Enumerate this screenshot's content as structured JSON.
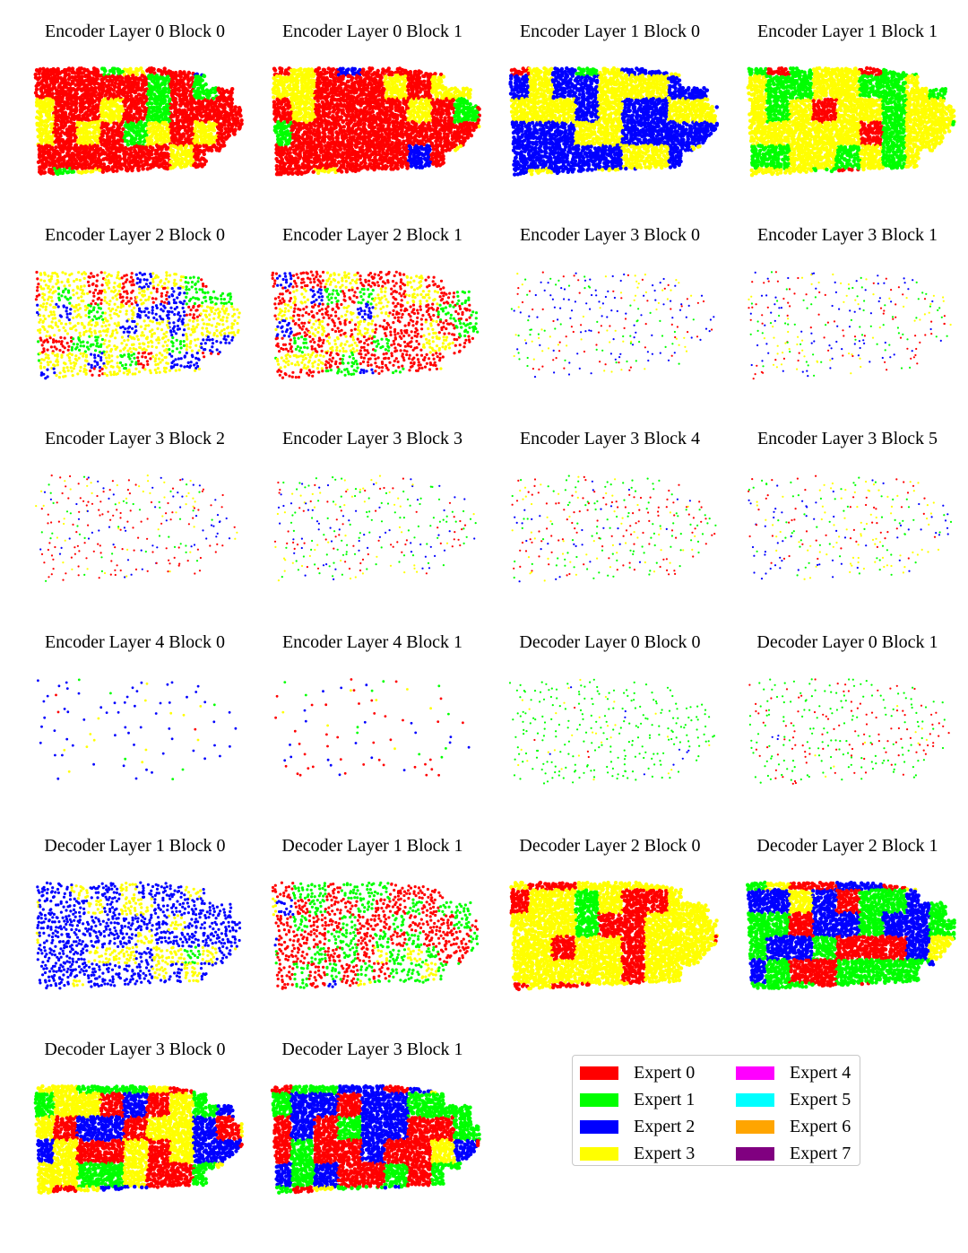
{
  "chart_data": {
    "type": "scatter",
    "description_source": "small-multiples of point clouds colored by expert assignment",
    "legend": {
      "placement": "bottom-right",
      "entries": [
        {
          "label": "Expert 0",
          "color": "#ff0000"
        },
        {
          "label": "Expert 1",
          "color": "#00ff00"
        },
        {
          "label": "Expert 2",
          "color": "#0000ff"
        },
        {
          "label": "Expert 3",
          "color": "#ffff00"
        },
        {
          "label": "Expert 4",
          "color": "#ff00ff"
        },
        {
          "label": "Expert 5",
          "color": "#00ffff"
        },
        {
          "label": "Expert 6",
          "color": "#ffa500"
        },
        {
          "label": "Expert 7",
          "color": "#800080"
        }
      ]
    },
    "panels": [
      {
        "title": "Encoder Layer 0 Block 0",
        "density": "dense",
        "mix": [
          0.62,
          0.08,
          0.05,
          0.25
        ]
      },
      {
        "title": "Encoder Layer 0 Block 1",
        "density": "dense",
        "mix": [
          0.72,
          0.02,
          0.03,
          0.23
        ]
      },
      {
        "title": "Encoder Layer 1 Block 0",
        "density": "dense",
        "mix": [
          0.04,
          0.08,
          0.6,
          0.28
        ]
      },
      {
        "title": "Encoder Layer 1 Block 1",
        "density": "dense",
        "mix": [
          0.03,
          0.42,
          0.05,
          0.5
        ]
      },
      {
        "title": "Encoder Layer 2 Block 0",
        "density": "medium",
        "mix": [
          0.15,
          0.12,
          0.18,
          0.55
        ]
      },
      {
        "title": "Encoder Layer 2 Block 1",
        "density": "medium",
        "mix": [
          0.48,
          0.22,
          0.08,
          0.22
        ]
      },
      {
        "title": "Encoder Layer 3 Block 0",
        "density": "sparse",
        "mix": [
          0.25,
          0.15,
          0.35,
          0.25
        ]
      },
      {
        "title": "Encoder Layer 3 Block 1",
        "density": "sparse",
        "mix": [
          0.3,
          0.18,
          0.34,
          0.18
        ]
      },
      {
        "title": "Encoder Layer 3 Block 2",
        "density": "sparse",
        "mix": [
          0.42,
          0.12,
          0.26,
          0.2
        ]
      },
      {
        "title": "Encoder Layer 3 Block 3",
        "density": "sparse",
        "mix": [
          0.22,
          0.38,
          0.22,
          0.18
        ]
      },
      {
        "title": "Encoder Layer 3 Block 4",
        "density": "sparse",
        "mix": [
          0.34,
          0.32,
          0.12,
          0.22
        ]
      },
      {
        "title": "Encoder Layer 3 Block 5",
        "density": "sparse",
        "mix": [
          0.2,
          0.34,
          0.18,
          0.28
        ]
      },
      {
        "title": "Encoder Layer 4 Block 0",
        "density": "verysparse",
        "mix": [
          0.06,
          0.12,
          0.72,
          0.1
        ]
      },
      {
        "title": "Encoder Layer 4 Block 1",
        "density": "verysparse",
        "mix": [
          0.42,
          0.16,
          0.3,
          0.12
        ]
      },
      {
        "title": "Decoder Layer 0 Block 0",
        "density": "sparse",
        "mix": [
          0.02,
          0.86,
          0.02,
          0.1
        ]
      },
      {
        "title": "Decoder Layer 0 Block 1",
        "density": "sparse",
        "mix": [
          0.3,
          0.66,
          0.01,
          0.03
        ]
      },
      {
        "title": "Decoder Layer 1 Block 0",
        "density": "medium",
        "mix": [
          0.01,
          0.01,
          0.76,
          0.22
        ]
      },
      {
        "title": "Decoder Layer 1 Block 1",
        "density": "medium",
        "mix": [
          0.52,
          0.4,
          0.02,
          0.06
        ]
      },
      {
        "title": "Decoder Layer 2 Block 0",
        "density": "dense",
        "mix": [
          0.48,
          0.04,
          0.02,
          0.46
        ]
      },
      {
        "title": "Decoder Layer 2 Block 1",
        "density": "dense",
        "mix": [
          0.24,
          0.36,
          0.3,
          0.1
        ]
      },
      {
        "title": "Decoder Layer 3 Block 0",
        "density": "dense",
        "mix": [
          0.34,
          0.2,
          0.12,
          0.34
        ]
      },
      {
        "title": "Decoder Layer 3 Block 1",
        "density": "dense",
        "mix": [
          0.28,
          0.34,
          0.3,
          0.08
        ]
      }
    ]
  }
}
